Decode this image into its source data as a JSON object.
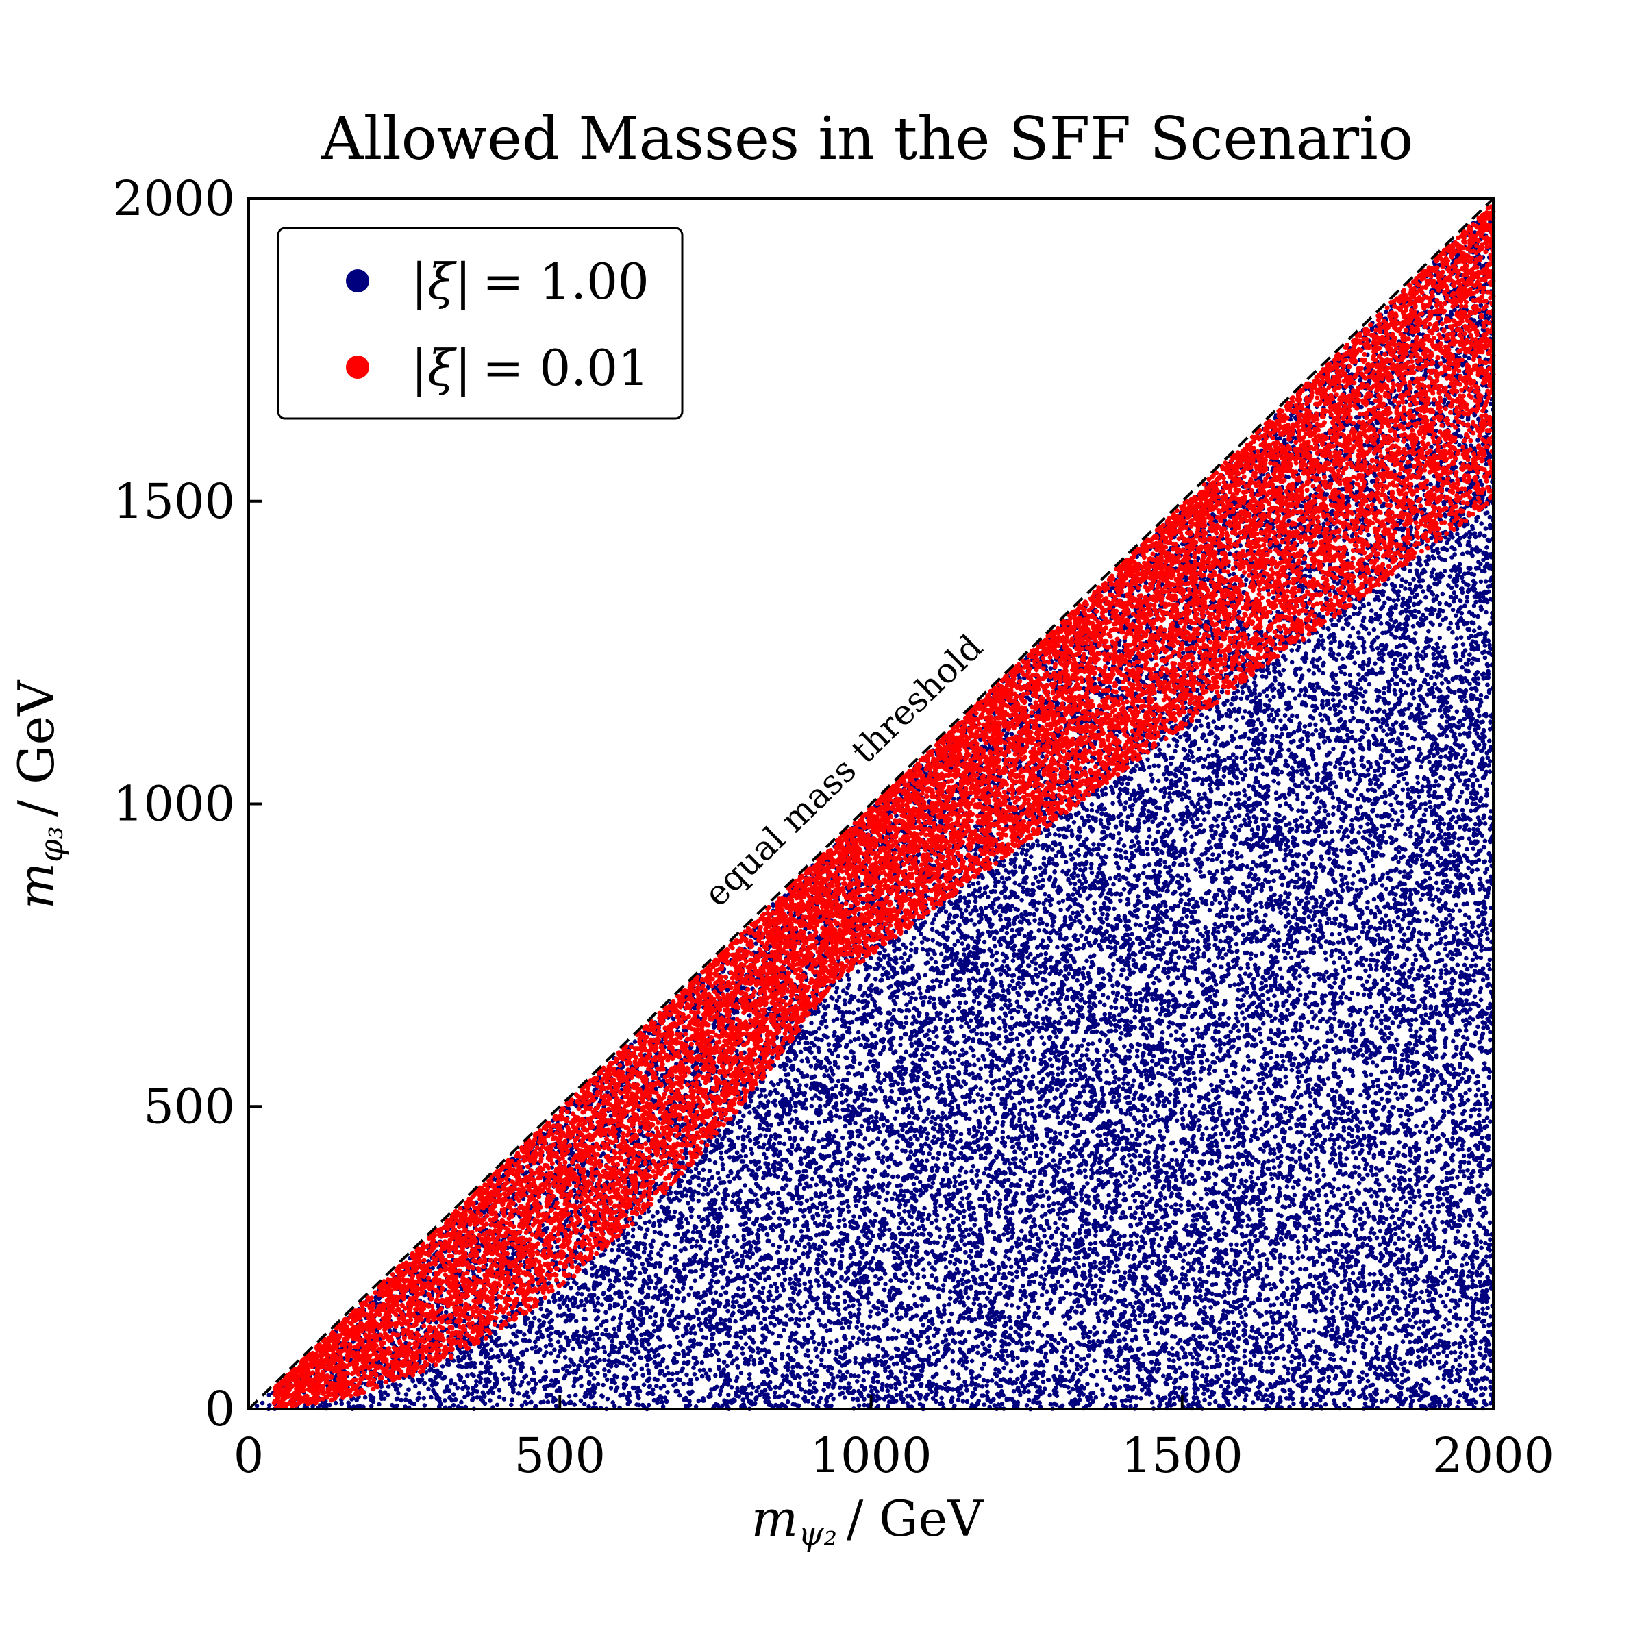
{
  "chart_data": {
    "type": "scatter",
    "title": "Allowed Masses in the SFF Scenario",
    "xlabel": {
      "symbol": "m",
      "subscript": "ψ₂",
      "unit": "/ GeV"
    },
    "ylabel": {
      "symbol": "m",
      "subscript": "φ₃",
      "unit": "/ GeV"
    },
    "xlim": [
      0,
      2000
    ],
    "ylim": [
      0,
      2000
    ],
    "x_ticks": [
      "0",
      "500",
      "1000",
      "1500",
      "2000"
    ],
    "y_ticks": [
      "0",
      "500",
      "1000",
      "1500",
      "2000"
    ],
    "grid": false,
    "legend_position": "top-left",
    "reference_line": {
      "label": "equal mass threshold",
      "x": [
        0,
        2000
      ],
      "y": [
        0,
        2000
      ],
      "style": "dashed"
    },
    "series": [
      {
        "name": "|ξ| = 1.00",
        "legend": {
          "symbol": "|ξ|",
          "value": "= 1.00"
        },
        "color": "#00007f",
        "region": "0 < m_phi3 < m_psi2 (fills the full lower triangle)",
        "approx_points": 28000
      },
      {
        "name": "|ξ| = 0.01",
        "legend": {
          "symbol": "|ξ|",
          "value": "= 0.01"
        },
        "color": "#ff0000",
        "region": "upper wedge near the diagonal; lower edge ≈ m_phi3 = 0.0008·m_psi2² (extended up to ≈0.75·m_psi2 at 2000 GeV)",
        "approx_points": 18000
      }
    ]
  }
}
